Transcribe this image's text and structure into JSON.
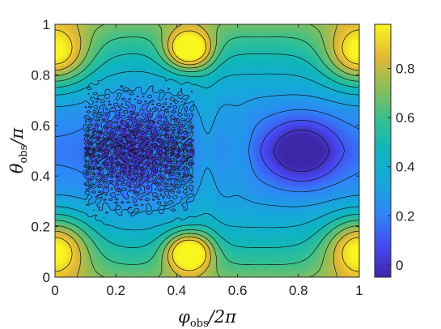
{
  "chart_data": {
    "type": "heatmap",
    "plot_style": "filled contour map with black contour lines",
    "title": "",
    "xlabel": {
      "base": "φ",
      "sub": "obs",
      "rest": "/2π"
    },
    "ylabel": {
      "base": "θ",
      "sub": "obs",
      "rest": "/π"
    },
    "xlim": [
      0,
      1
    ],
    "ylim": [
      0,
      1
    ],
    "x_ticks": [
      {
        "value": 0,
        "label": "0"
      },
      {
        "value": 0.2,
        "label": "0.2"
      },
      {
        "value": 0.4,
        "label": "0.4"
      },
      {
        "value": 0.6,
        "label": "0.6"
      },
      {
        "value": 0.8,
        "label": "0.8"
      },
      {
        "value": 1,
        "label": "1"
      }
    ],
    "y_ticks": [
      {
        "value": 0,
        "label": "0"
      },
      {
        "value": 0.2,
        "label": "0.2"
      },
      {
        "value": 0.4,
        "label": "0.4"
      },
      {
        "value": 0.6,
        "label": "0.6"
      },
      {
        "value": 0.8,
        "label": "0.8"
      },
      {
        "value": 1,
        "label": "1"
      }
    ],
    "colorbar": {
      "colormap": "parula",
      "range": [
        -0.05,
        0.98
      ],
      "ticks": [
        {
          "value": 0,
          "label": "0"
        },
        {
          "value": 0.2,
          "label": "0.2"
        },
        {
          "value": 0.4,
          "label": "0.4"
        },
        {
          "value": 0.6,
          "label": "0.6"
        },
        {
          "value": 0.8,
          "label": "0.8"
        }
      ]
    },
    "contour_levels": [
      0.0,
      0.1,
      0.2,
      0.3,
      0.4,
      0.5,
      0.6,
      0.7,
      0.8,
      0.9
    ],
    "features": [
      {
        "kind": "maximum",
        "x": 0.0,
        "y": 0.12,
        "value": 0.85
      },
      {
        "kind": "maximum",
        "x": 0.0,
        "y": 0.88,
        "value": 0.85
      },
      {
        "kind": "maximum",
        "x": 1.0,
        "y": 0.12,
        "value": 0.85
      },
      {
        "kind": "maximum",
        "x": 1.0,
        "y": 0.88,
        "value": 0.85
      },
      {
        "kind": "maximum",
        "x": 0.44,
        "y": 0.1,
        "value": 0.95
      },
      {
        "kind": "maximum",
        "x": 0.44,
        "y": 0.9,
        "value": 0.95
      },
      {
        "kind": "minimum",
        "x": 0.0,
        "y": 0.5,
        "value": 0.15
      },
      {
        "kind": "minimum",
        "x": 0.26,
        "y": 0.5,
        "value": 0.1
      },
      {
        "kind": "minimum",
        "x": 0.5,
        "y": 0.5,
        "value": 0.3
      },
      {
        "kind": "minimum",
        "x": 0.81,
        "y": 0.5,
        "value": -0.02
      },
      {
        "kind": "noisy_band",
        "x_range": [
          0.1,
          0.45
        ],
        "y_range": [
          0.2,
          0.8
        ]
      }
    ]
  }
}
